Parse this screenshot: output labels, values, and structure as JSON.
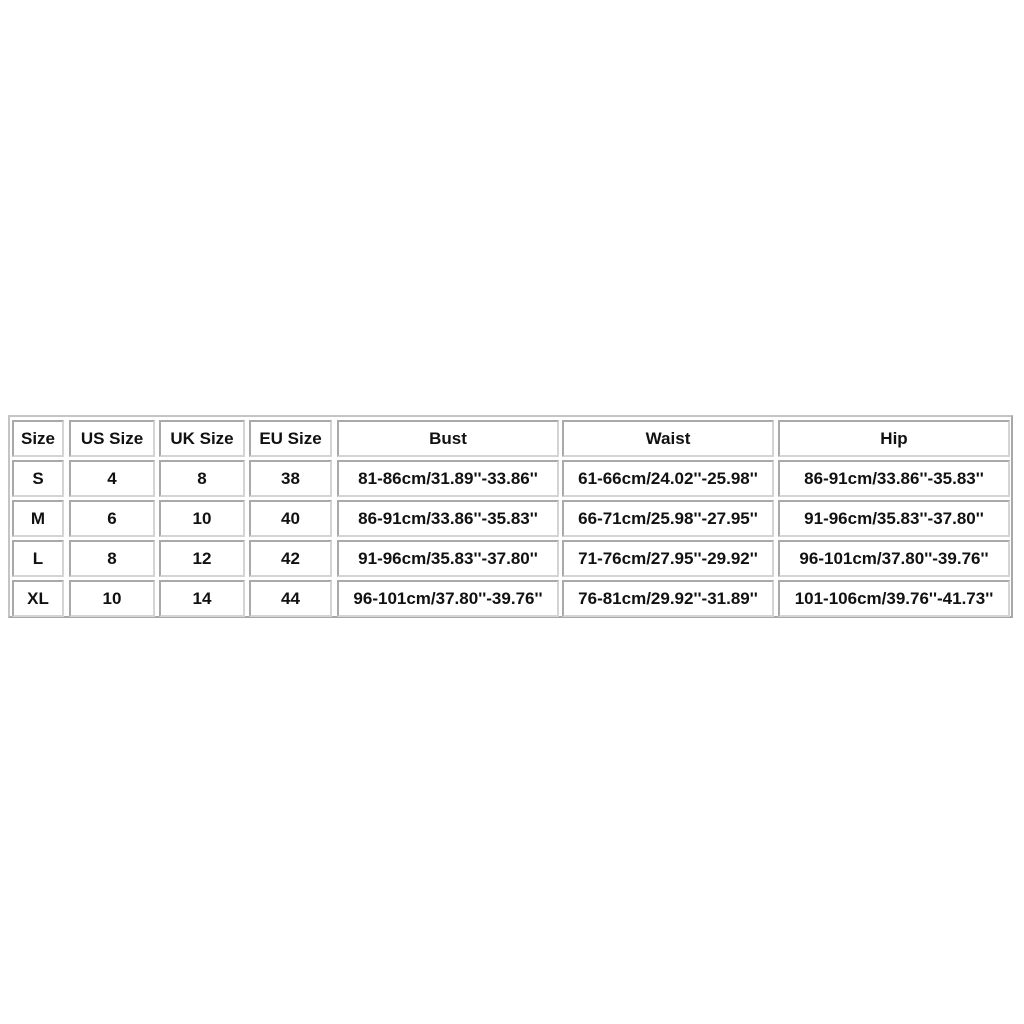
{
  "headers": [
    "Size",
    "US Size",
    "UK Size",
    "EU Size",
    "Bust",
    "Waist",
    "Hip"
  ],
  "rows": [
    [
      "S",
      "4",
      "8",
      "38",
      "81-86cm/31.89''-33.86''",
      "61-66cm/24.02''-25.98''",
      "86-91cm/33.86''-35.83''"
    ],
    [
      "M",
      "6",
      "10",
      "40",
      "86-91cm/33.86''-35.83''",
      "66-71cm/25.98''-27.95''",
      "91-96cm/35.83''-37.80''"
    ],
    [
      "L",
      "8",
      "12",
      "42",
      "91-96cm/35.83''-37.80''",
      "71-76cm/27.95''-29.92''",
      "96-101cm/37.80''-39.76''"
    ],
    [
      "XL",
      "10",
      "14",
      "44",
      "96-101cm/37.80''-39.76''",
      "76-81cm/29.92''-31.89''",
      "101-106cm/39.76''-41.73''"
    ]
  ]
}
